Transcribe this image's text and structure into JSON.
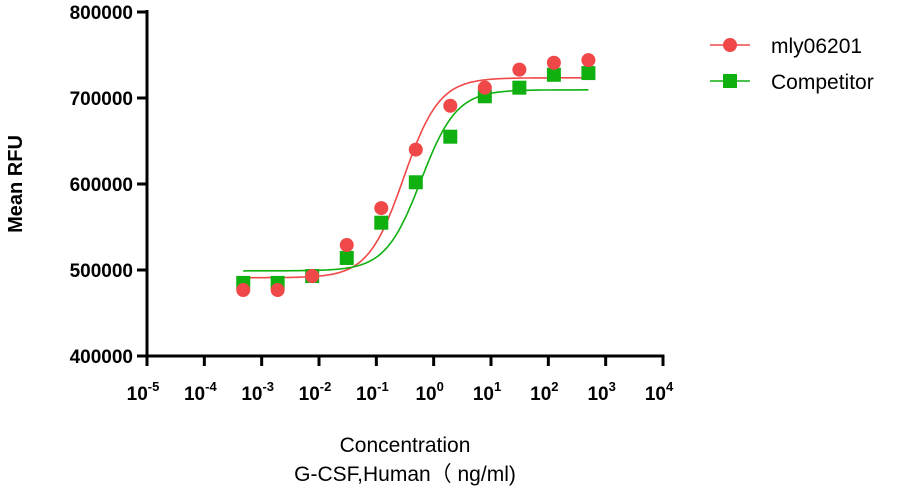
{
  "chart_data": {
    "type": "scatter",
    "title": "",
    "xlabel": "Concentration",
    "xlabel2": "G-CSF,Human（ ng/ml)",
    "ylabel": "Mean RFU",
    "xscale": "log",
    "xlim_exp": [
      -5,
      4
    ],
    "xtick_exponents": [
      "-5",
      "-4",
      "-3",
      "-2",
      "-1",
      "0",
      "1",
      "2",
      "3",
      "4"
    ],
    "ylim": [
      400000,
      800000
    ],
    "yticks": [
      "400000",
      "500000",
      "600000",
      "700000",
      "800000"
    ],
    "grid": false,
    "legend_position": "top-right",
    "x": [
      0.000477,
      0.0019,
      0.0076,
      0.0305,
      0.122,
      0.488,
      1.95,
      7.8,
      31.25,
      125,
      500
    ],
    "series": [
      {
        "name": "mly06201",
        "color": "#f04848",
        "marker": "circle",
        "values": [
          476700,
          476700,
          493000,
          529000,
          572000,
          640000,
          691000,
          712000,
          733000,
          741000,
          744000
        ],
        "fit": {
          "bottom": 491000,
          "top": 723500,
          "ec50": 0.3,
          "hill": 1.4
        }
      },
      {
        "name": "Competitor",
        "color": "#10b010",
        "marker": "square",
        "values": [
          485000,
          485000,
          493000,
          514000,
          555000,
          602000,
          655000,
          702000,
          712000,
          727000,
          729000
        ],
        "fit": {
          "bottom": 499000,
          "top": 709500,
          "ec50": 0.6,
          "hill": 1.4
        }
      }
    ]
  }
}
